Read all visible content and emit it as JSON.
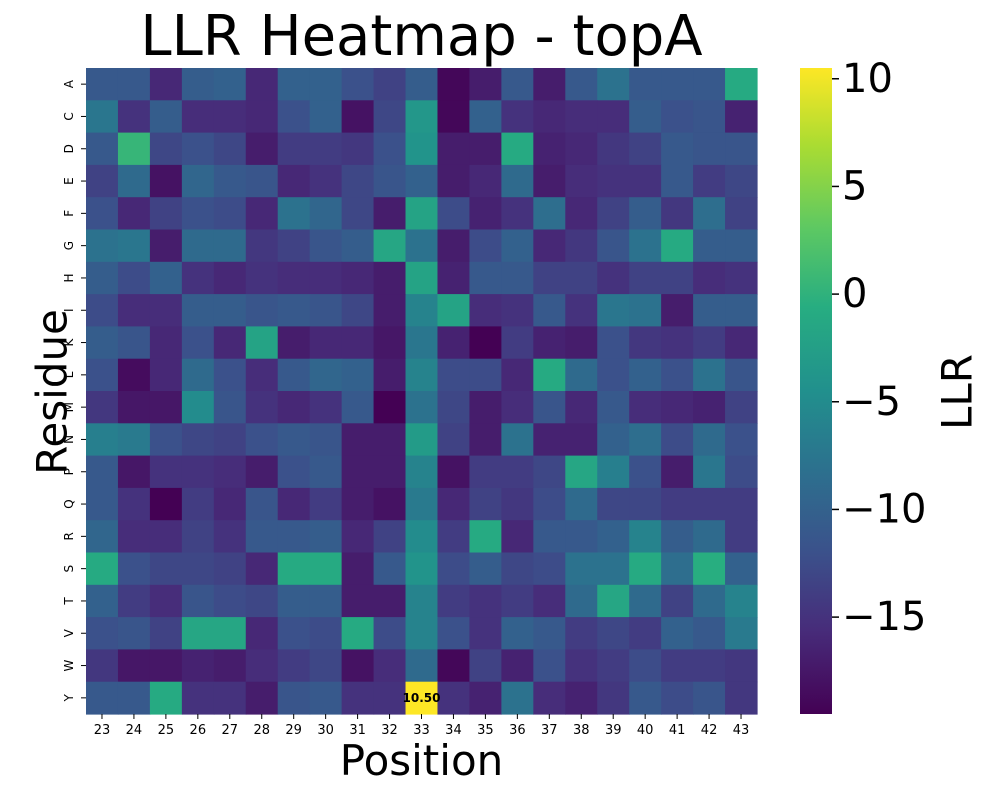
{
  "chart_data": {
    "type": "heatmap",
    "title": "LLR Heatmap - topA",
    "xlabel": "Position",
    "ylabel": "Residue",
    "colorbar_label": "LLR",
    "colormap": "viridis",
    "vmin": -19.5,
    "vmax": 10.5,
    "colorbar_ticks": [
      "10",
      "5",
      "0",
      "−5",
      "−10",
      "−15"
    ],
    "colorbar_tick_values": [
      10,
      5,
      0,
      -5,
      -10,
      -15
    ],
    "x": [
      "23",
      "24",
      "25",
      "26",
      "27",
      "28",
      "29",
      "30",
      "31",
      "32",
      "33",
      "34",
      "35",
      "36",
      "37",
      "38",
      "39",
      "40",
      "41",
      "42",
      "43"
    ],
    "y": [
      "A",
      "C",
      "D",
      "E",
      "F",
      "G",
      "H",
      "I",
      "K",
      "L",
      "M",
      "N",
      "P",
      "Q",
      "R",
      "S",
      "T",
      "V",
      "W",
      "Y"
    ],
    "values": [
      [
        -11,
        -11,
        -16,
        -10.5,
        -10,
        -16,
        -10,
        -10,
        -12,
        -13.5,
        -10.5,
        -19,
        -17,
        -11,
        -17,
        -11,
        -8,
        -11,
        -11,
        -11,
        -1
      ],
      [
        -7.5,
        -15,
        -10.5,
        -15.5,
        -15.5,
        -16,
        -12,
        -10,
        -18,
        -13,
        -3.5,
        -19,
        -10,
        -15,
        -16,
        -15.5,
        -15.5,
        -10.5,
        -12,
        -11.5,
        -16.5
      ],
      [
        -11,
        0.5,
        -13,
        -12,
        -13,
        -17,
        -14,
        -14,
        -14.5,
        -12,
        -4,
        -17,
        -17,
        -1,
        -16.5,
        -16,
        -14.5,
        -13.5,
        -11,
        -11.5,
        -11.5
      ],
      [
        -13.5,
        -9,
        -18,
        -9.5,
        -11,
        -11.5,
        -16,
        -15,
        -13,
        -11.5,
        -10,
        -17,
        -16,
        -9,
        -17,
        -15.5,
        -15,
        -15,
        -11,
        -14,
        -13
      ],
      [
        -12,
        -16,
        -13.5,
        -12,
        -12.5,
        -16,
        -8,
        -9.5,
        -13,
        -17,
        -2,
        -12.5,
        -16.5,
        -15,
        -8.5,
        -16,
        -13.5,
        -10.5,
        -14.5,
        -8.5,
        -13.5
      ],
      [
        -8,
        -7.5,
        -17,
        -9,
        -9,
        -14.5,
        -13.5,
        -11.5,
        -10.5,
        -1.5,
        -8,
        -17,
        -12.5,
        -10,
        -16,
        -14.5,
        -11.5,
        -8,
        -1,
        -10.5,
        -10.5
      ],
      [
        -10.5,
        -12.5,
        -10,
        -15,
        -16,
        -15,
        -15.5,
        -15.5,
        -16,
        -17,
        -2,
        -16.5,
        -11,
        -11,
        -13.5,
        -13.5,
        -15,
        -13.5,
        -13.5,
        -15.5,
        -15
      ],
      [
        -12.5,
        -15.5,
        -15.5,
        -10.5,
        -10.5,
        -11.5,
        -11,
        -11.5,
        -13,
        -17,
        -6,
        -2,
        -15.5,
        -15,
        -11,
        -15,
        -7.5,
        -8,
        -17,
        -10.5,
        -10.5
      ],
      [
        -10.5,
        -11.5,
        -16,
        -12,
        -16,
        -2,
        -17,
        -16,
        -16,
        -17.5,
        -7.5,
        -16.5,
        -19.5,
        -14,
        -16.5,
        -17,
        -12,
        -14.5,
        -15,
        -14,
        -16
      ],
      [
        -12,
        -18.5,
        -16,
        -9,
        -12,
        -15.5,
        -11,
        -9.5,
        -10,
        -17,
        -6,
        -12.5,
        -12.5,
        -16,
        -1,
        -9,
        -12,
        -10,
        -12,
        -8,
        -11.5
      ],
      [
        -14.5,
        -17.5,
        -17.5,
        -5,
        -11.5,
        -15,
        -16,
        -15,
        -11,
        -19.5,
        -8,
        -13,
        -17,
        -15.5,
        -11.5,
        -16,
        -11,
        -15.5,
        -16,
        -16.5,
        -13.5
      ],
      [
        -6.5,
        -7,
        -12,
        -13,
        -13.5,
        -12,
        -11,
        -11.5,
        -17,
        -17,
        -3,
        -13.5,
        -17,
        -8,
        -16.5,
        -16.5,
        -10,
        -8.5,
        -12.5,
        -9,
        -12
      ],
      [
        -11,
        -17.5,
        -15,
        -15,
        -15.5,
        -17,
        -12,
        -11,
        -17,
        -17,
        -6,
        -18,
        -14,
        -14,
        -13,
        -1.5,
        -6.5,
        -12,
        -17,
        -7.5,
        -12.5
      ],
      [
        -11,
        -15,
        -19.5,
        -14,
        -16,
        -11.5,
        -16,
        -14,
        -17,
        -18,
        -7,
        -16,
        -13.5,
        -14.5,
        -12.5,
        -9,
        -13,
        -13,
        -14,
        -14,
        -14
      ],
      [
        -9.5,
        -15.5,
        -15.5,
        -13.5,
        -15,
        -11,
        -11,
        -10.5,
        -16,
        -13.5,
        -5,
        -14,
        -1,
        -16,
        -11,
        -11,
        -10,
        -6,
        -10.5,
        -9,
        -14
      ],
      [
        -1,
        -12,
        -13,
        -13,
        -13.5,
        -16,
        -1,
        -1,
        -17,
        -11,
        -4,
        -12.5,
        -10.5,
        -13,
        -12.5,
        -8,
        -8,
        -1,
        -8.5,
        -0.5,
        -10
      ],
      [
        -10,
        -14,
        -15.5,
        -11.5,
        -12.5,
        -13,
        -10.5,
        -10.5,
        -17,
        -17,
        -6,
        -14,
        -15,
        -14,
        -15.5,
        -9,
        -1.5,
        -9,
        -13.5,
        -9,
        -6
      ],
      [
        -12,
        -11.5,
        -13.5,
        -1.5,
        -1.5,
        -16,
        -12,
        -12.5,
        -1,
        -12.5,
        -6,
        -12,
        -15,
        -10,
        -11,
        -14,
        -13,
        -14,
        -10,
        -11,
        -7
      ],
      [
        -14.5,
        -17.5,
        -17.5,
        -16.5,
        -17,
        -15.5,
        -14,
        -13,
        -18,
        -15.5,
        -9,
        -19,
        -13.5,
        -16.5,
        -12,
        -15,
        -14,
        -12.5,
        -14,
        -14,
        -14.5
      ],
      [
        -11,
        -11,
        -1,
        -15,
        -15,
        -17,
        -11.5,
        -11,
        -15,
        -15,
        10.5,
        -15,
        -16.5,
        -8,
        -15.5,
        -16.5,
        -14.5,
        -11,
        -12.5,
        -11.5,
        -14.5
      ]
    ],
    "annotations": [
      {
        "x": "33",
        "y": "Y",
        "text": "10.50"
      }
    ]
  }
}
